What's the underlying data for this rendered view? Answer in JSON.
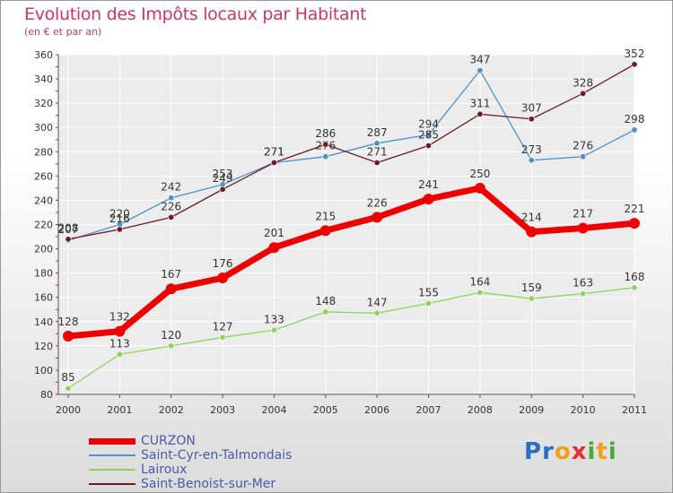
{
  "title": "Evolution des Impôts locaux par Habitant",
  "subtitle": "(en € et par an)",
  "logo": {
    "letters": [
      "P",
      "r",
      "o",
      "x",
      "i",
      "t",
      "i"
    ],
    "colors": [
      "#2a6fc0",
      "#2a6fc0",
      "#f0a020",
      "#e03030",
      "#4aa838",
      "#f0a020",
      "#4aa838"
    ]
  },
  "chart_data": {
    "type": "line",
    "title": "Evolution des Impôts locaux par Habitant",
    "subtitle": "(en € et par an)",
    "xlabel": "",
    "ylabel": "",
    "x": [
      "2000",
      "2001",
      "2002",
      "2003",
      "2004",
      "2005",
      "2006",
      "2007",
      "2008",
      "2009",
      "2010",
      "2011"
    ],
    "ylim": [
      80,
      360
    ],
    "yticks": [
      80,
      100,
      120,
      140,
      160,
      180,
      200,
      220,
      240,
      260,
      280,
      300,
      320,
      340,
      360
    ],
    "grid": true,
    "legend_position": "bottom-left",
    "series": [
      {
        "name": "Saint-Cyr-en-Talmondais",
        "color": "#4f90cc",
        "values": [
          207,
          220,
          242,
          253,
          271,
          276,
          287,
          294,
          347,
          273,
          276,
          298
        ]
      },
      {
        "name": "Saint-Benoist-sur-Mer",
        "color": "#6b1a2a",
        "values": [
          208,
          216,
          226,
          249,
          271,
          286,
          271,
          285,
          311,
          307,
          328,
          352
        ]
      },
      {
        "name": "Lairoux",
        "color": "#8cd45a",
        "values": [
          85,
          113,
          120,
          127,
          133,
          148,
          147,
          155,
          164,
          159,
          163,
          168
        ]
      },
      {
        "name": "CURZON",
        "color": "#ee0000",
        "values": [
          128,
          132,
          167,
          176,
          201,
          215,
          226,
          241,
          250,
          214,
          217,
          221
        ]
      }
    ],
    "legend_order": [
      "CURZON",
      "Saint-Cyr-en-Talmondais",
      "Lairoux",
      "Saint-Benoist-sur-Mer"
    ]
  }
}
